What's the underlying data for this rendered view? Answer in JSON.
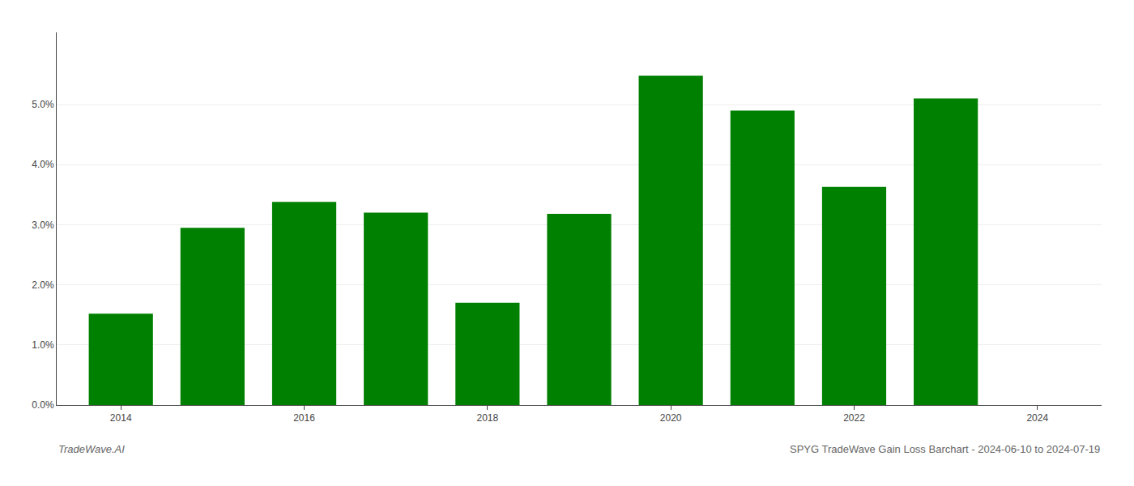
{
  "chart_data": {
    "type": "bar",
    "x": [
      2014,
      2015,
      2016,
      2017,
      2018,
      2019,
      2020,
      2021,
      2022,
      2023
    ],
    "values": [
      0.0152,
      0.0295,
      0.0338,
      0.032,
      0.017,
      0.0318,
      0.0548,
      0.049,
      0.0363,
      0.051
    ],
    "color": "#008000",
    "xlim": [
      2013.3,
      2024.7
    ],
    "xticks": [
      2014,
      2016,
      2018,
      2020,
      2022,
      2024
    ],
    "ylim": [
      0.0,
      0.062
    ],
    "yticks": [
      {
        "value": 0.0,
        "label": "0.0%"
      },
      {
        "value": 0.01,
        "label": "1.0%"
      },
      {
        "value": 0.02,
        "label": "2.0%"
      },
      {
        "value": 0.03,
        "label": "3.0%"
      },
      {
        "value": 0.04,
        "label": "4.0%"
      },
      {
        "value": 0.05,
        "label": "5.0%"
      }
    ],
    "grid": true,
    "annotations": [
      "TradeWave.AI",
      "SPYG TradeWave Gain Loss Barchart - 2024-06-10 to 2024-07-19"
    ]
  }
}
